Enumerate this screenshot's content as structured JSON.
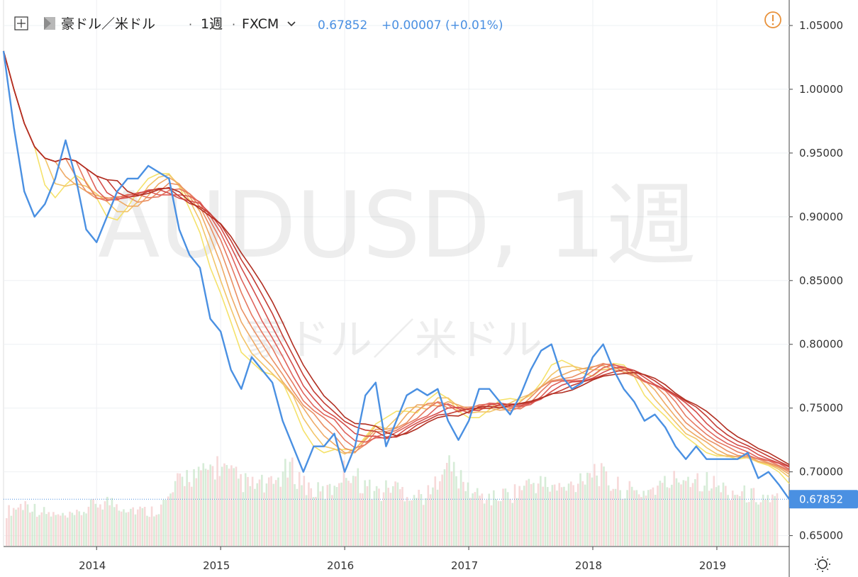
{
  "header": {
    "symbol_name": "豪ドル／米ドル",
    "separator": "·",
    "interval": "1週",
    "exchange": "FXCM",
    "price": "0.67852",
    "change": "+0.00007 (+0.01%)",
    "icons": [
      "expand-icon",
      "symbol-flag-icon",
      "chevron-down-icon",
      "alert-icon",
      "settings-icon"
    ]
  },
  "watermark": {
    "line1": "AUDUSD, 1週",
    "line2": "豪ドル／米ドル"
  },
  "colors": {
    "price_line": "#4a90e2",
    "up_volume": "#c8e6c9",
    "down_volume": "#f4cccc",
    "ribbon": [
      "#f5e26b",
      "#f2c468",
      "#eeaa66",
      "#ea9063",
      "#e67860",
      "#df615a",
      "#d44d4a",
      "#c43d35",
      "#b12f22"
    ],
    "price_tag": "#4a90e2",
    "alert": "#e8913a"
  },
  "chart_data": {
    "type": "line",
    "title": "AUDUSD, 1週",
    "xlabel": "",
    "ylabel": "",
    "x_ticks": [
      "2014",
      "2015",
      "2016",
      "2017",
      "2018",
      "2019"
    ],
    "y_ticks": [
      "1.05000",
      "1.00000",
      "0.95000",
      "0.90000",
      "0.85000",
      "0.80000",
      "0.75000",
      "0.70000",
      "0.65000"
    ],
    "ylim": [
      0.642,
      1.07
    ],
    "last_price_label": "0.67852",
    "last_price": 0.67852,
    "grid": true,
    "x_domain": [
      "2013-04",
      "2019-08"
    ],
    "price_series": {
      "name": "",
      "x": [
        "2013-04",
        "2013-05",
        "2013-06",
        "2013-07",
        "2013-08",
        "2013-09",
        "2013-10",
        "2013-11",
        "2013-12",
        "2014-01",
        "2014-02",
        "2014-03",
        "2014-04",
        "2014-05",
        "2014-06",
        "2014-07",
        "2014-08",
        "2014-09",
        "2014-10",
        "2014-11",
        "2014-12",
        "2015-01",
        "2015-02",
        "2015-03",
        "2015-04",
        "2015-05",
        "2015-06",
        "2015-07",
        "2015-08",
        "2015-09",
        "2015-10",
        "2015-11",
        "2015-12",
        "2016-01",
        "2016-02",
        "2016-03",
        "2016-04",
        "2016-05",
        "2016-06",
        "2016-07",
        "2016-08",
        "2016-09",
        "2016-10",
        "2016-11",
        "2016-12",
        "2017-01",
        "2017-02",
        "2017-03",
        "2017-04",
        "2017-05",
        "2017-06",
        "2017-07",
        "2017-08",
        "2017-09",
        "2017-10",
        "2017-11",
        "2017-12",
        "2018-01",
        "2018-02",
        "2018-03",
        "2018-04",
        "2018-05",
        "2018-06",
        "2018-07",
        "2018-08",
        "2018-09",
        "2018-10",
        "2018-11",
        "2018-12",
        "2019-01",
        "2019-02",
        "2019-03",
        "2019-04",
        "2019-05",
        "2019-06",
        "2019-07",
        "2019-08"
      ],
      "y": [
        1.03,
        0.97,
        0.92,
        0.9,
        0.91,
        0.93,
        0.96,
        0.93,
        0.89,
        0.88,
        0.9,
        0.92,
        0.93,
        0.93,
        0.94,
        0.935,
        0.93,
        0.89,
        0.87,
        0.86,
        0.82,
        0.81,
        0.78,
        0.765,
        0.79,
        0.78,
        0.77,
        0.74,
        0.72,
        0.7,
        0.72,
        0.72,
        0.73,
        0.7,
        0.72,
        0.76,
        0.77,
        0.72,
        0.74,
        0.76,
        0.765,
        0.76,
        0.765,
        0.74,
        0.725,
        0.74,
        0.765,
        0.765,
        0.755,
        0.745,
        0.76,
        0.78,
        0.795,
        0.8,
        0.775,
        0.765,
        0.77,
        0.79,
        0.8,
        0.78,
        0.765,
        0.755,
        0.74,
        0.745,
        0.735,
        0.72,
        0.71,
        0.72,
        0.71,
        0.71,
        0.71,
        0.71,
        0.715,
        0.695,
        0.7,
        0.69,
        0.6785
      ]
    },
    "ribbon_series": [
      {
        "name": "",
        "lag": 3
      },
      {
        "name": "",
        "lag": 4
      },
      {
        "name": "",
        "lag": 5
      },
      {
        "name": "",
        "lag": 6
      },
      {
        "name": "",
        "lag": 7
      },
      {
        "name": "",
        "lag": 8
      },
      {
        "name": "",
        "lag": 9
      },
      {
        "name": "",
        "lag": 10
      },
      {
        "name": "",
        "lag": 11
      }
    ],
    "volume_relative": [
      0.4,
      0.45,
      0.5,
      0.42,
      0.38,
      0.35,
      0.33,
      0.36,
      0.44,
      0.5,
      0.52,
      0.48,
      0.45,
      0.42,
      0.4,
      0.44,
      0.55,
      0.75,
      0.85,
      0.8,
      0.9,
      0.95,
      0.82,
      0.78,
      0.7,
      0.72,
      0.68,
      0.82,
      0.9,
      0.78,
      0.66,
      0.62,
      0.65,
      0.86,
      0.88,
      0.74,
      0.66,
      0.62,
      0.72,
      0.65,
      0.6,
      0.58,
      0.62,
      1.0,
      0.9,
      0.72,
      0.62,
      0.58,
      0.55,
      0.6,
      0.62,
      0.7,
      0.74,
      0.72,
      0.68,
      0.66,
      0.72,
      0.86,
      0.9,
      0.78,
      0.7,
      0.66,
      0.62,
      0.64,
      0.68,
      0.72,
      0.78,
      0.82,
      0.8,
      0.76,
      0.7,
      0.66,
      0.62,
      0.6,
      0.58,
      0.56,
      0.55
    ]
  }
}
